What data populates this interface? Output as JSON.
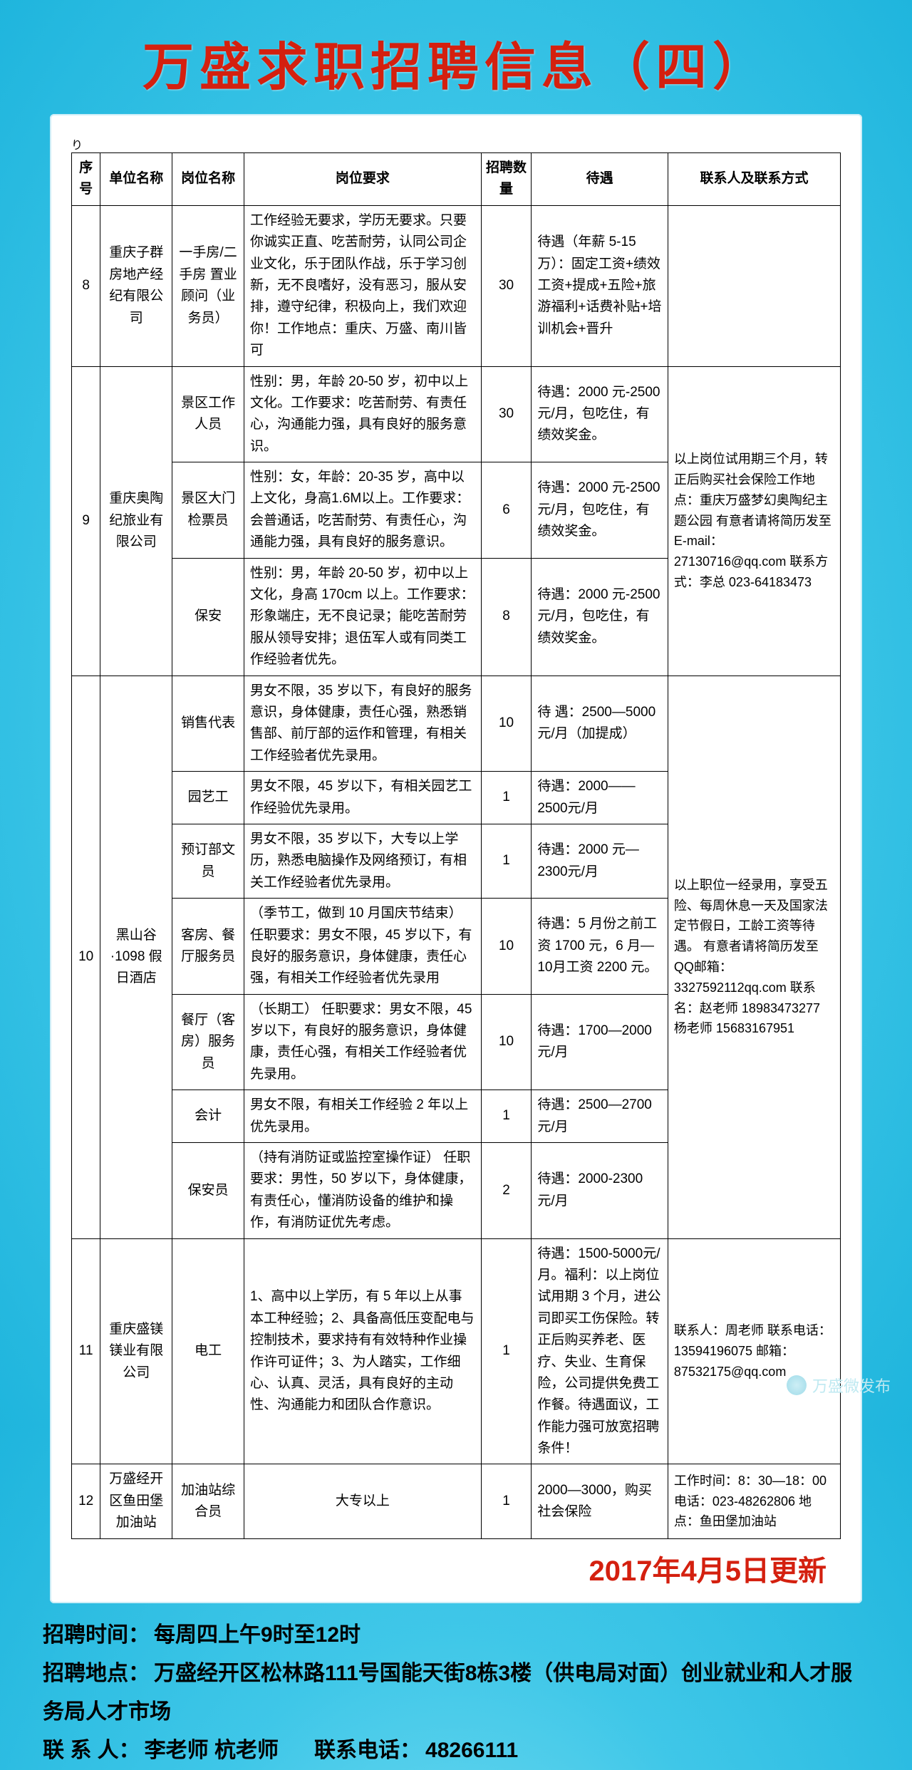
{
  "page": {
    "title": "万盛求职招聘信息（四）",
    "update_text": "2017年4月5日更新",
    "watermark": "万盛微发布"
  },
  "table": {
    "headers": [
      "序号",
      "单位名称",
      "岗位名称",
      "岗位要求",
      "招聘数量",
      "待遇",
      "联系人及联系方式"
    ]
  },
  "rows": {
    "r8": {
      "idx": "8",
      "company": "重庆子群房地产经纪有限公司",
      "pos": "一手房/二手房 置业顾问（业务员）",
      "req": "工作经验无要求，学历无要求。只要你诚实正直、吃苦耐劳，认同公司企业文化，乐于团队作战，乐于学习创新，无不良嗜好，没有恶习，服从安排，遵守纪律，积极向上，我们欢迎你！工作地点：重庆、万盛、南川皆可",
      "cnt": "30",
      "treat": "待遇（年薪 5-15 万）：固定工资+绩效工资+提成+五险+旅游福利+话费补贴+培训机会+晋升",
      "contact": ""
    },
    "r9": {
      "idx": "9",
      "company": "重庆奥陶纪旅业有限公司",
      "contact": "以上岗位试用期三个月，转正后购买社会保险工作地点：重庆万盛梦幻奥陶纪主题公园 有意者请将简历发至E-mail：27130716@qq.com\n联系方式：李总\n023-64183473",
      "p1": {
        "pos": "景区工作人员",
        "req": "性别：男，年龄 20-50 岁，初中以上文化。工作要求：吃苦耐劳、有责任心，沟通能力强，具有良好的服务意识。",
        "cnt": "30",
        "treat": "待遇：2000 元-2500 元/月，包吃住，有绩效奖金。"
      },
      "p2": {
        "pos": "景区大门检票员",
        "req": "性别：女，年龄：20-35 岁，高中以上文化，身高1.6M以上。工作要求：会普通话，吃苦耐劳、有责任心，沟通能力强，具有良好的服务意识。",
        "cnt": "6",
        "treat": "待遇：2000 元-2500 元/月，包吃住，有绩效奖金。"
      },
      "p3": {
        "pos": "保安",
        "req": "性别：男，年龄 20-50 岁，初中以上文化，身高 170cm 以上。工作要求：形象端庄，无不良记录；能吃苦耐劳服从领导安排；退伍军人或有同类工作经验者优先。",
        "cnt": "8",
        "treat": "待遇：2000 元-2500 元/月，包吃住，有绩效奖金。"
      }
    },
    "r10": {
      "idx": "10",
      "company": "黑山谷·1098 假日酒店",
      "contact": "以上职位一经录用，享受五险、每周休息一天及国家法定节假日，工龄工资等待遇。\n有意者请将简历发至QQ邮箱：3327592112qq.com\n联系名：赵老师\n18983473277\n杨老师\n15683167951",
      "p1": {
        "pos": "销售代表",
        "req": "男女不限，35 岁以下，有良好的服务意识，身体健康，责任心强，熟悉销售部、前厅部的运作和管理，有相关工作经验者优先录用。",
        "cnt": "10",
        "treat": "待  遇：2500—5000元/月（加提成）"
      },
      "p2": {
        "pos": "园艺工",
        "req": "男女不限，45 岁以下，有相关园艺工作经验优先录用。",
        "cnt": "1",
        "treat": "待遇：2000——2500元/月"
      },
      "p3": {
        "pos": "预订部文员",
        "req": "男女不限，35 岁以下，大专以上学历，熟悉电脑操作及网络预订，有相关工作经验者优先录用。",
        "cnt": "1",
        "treat": "待遇：2000 元—2300元/月"
      },
      "p4": {
        "pos": "客房、餐厅服务员",
        "req": "（季节工，做到 10 月国庆节结束）\n任职要求：男女不限，45 岁以下，有良好的服务意识，身体健康，责任心强，有相关工作经验者优先录用",
        "cnt": "10",
        "treat": "待遇：5 月份之前工资 1700 元，6 月—10月工资 2200 元。"
      },
      "p5": {
        "pos": "餐厅（客房）服务员",
        "req": "（长期工）\n任职要求：男女不限，45 岁以下，有良好的服务意识，身体健康，责任心强，有相关工作经验者优先录用。",
        "cnt": "10",
        "treat": "待遇：1700—2000 元/月"
      },
      "p6": {
        "pos": "会计",
        "req": "男女不限，有相关工作经验 2 年以上优先录用。",
        "cnt": "1",
        "treat": "待遇：2500—2700 元/月"
      },
      "p7": {
        "pos": "保安员",
        "req": "（持有消防证或监控室操作证）\n任职要求：男性，50 岁以下，身体健康，有责任心，懂消防设备的维护和操作，有消防证优先考虑。",
        "cnt": "2",
        "treat": "待遇：2000-2300 元/月"
      }
    },
    "r11": {
      "idx": "11",
      "company": "重庆盛镁镁业有限公司",
      "pos": "电工",
      "req": "1、高中以上学历，有 5 年以上从事本工种经验；2、具备高低压变配电与控制技术，要求持有有效特种作业操作许可证件；3、为人踏实，工作细心、认真、灵活，具有良好的主动性、沟通能力和团队合作意识。",
      "cnt": "1",
      "treat": "待遇：1500-5000元/月。福利：以上岗位试用期 3 个月，进公司即买工伤保险。转正后购买养老、医疗、失业、生育保险，公司提供免费工作餐。待遇面议，工作能力强可放宽招聘条件！",
      "contact": "联系人：周老师\n联系电话：13594196075\n邮箱：\n87532175@qq.com"
    },
    "r12": {
      "idx": "12",
      "company": "万盛经开区鱼田堡加油站",
      "pos": "加油站综合员",
      "req": "大专以上",
      "cnt": "1",
      "treat": "2000—3000，购买社会保险",
      "contact": "工作时间：8：30—18：00 电话：023-48262806\n地点：鱼田堡加油站"
    }
  },
  "footer": {
    "line1_label": "招聘时间：",
    "line1_val": "每周四上午9时至12时",
    "line2_label": "招聘地点：",
    "line2_val": "万盛经开区松林路111号国能天街8栋3楼（供电局对面）创业就业和人才服务局人才市场",
    "line3_label": "联 系 人：",
    "line3_val": "李老师  杭老师",
    "line3_phone_label": "联系电话：",
    "line3_phone": "48266111"
  }
}
